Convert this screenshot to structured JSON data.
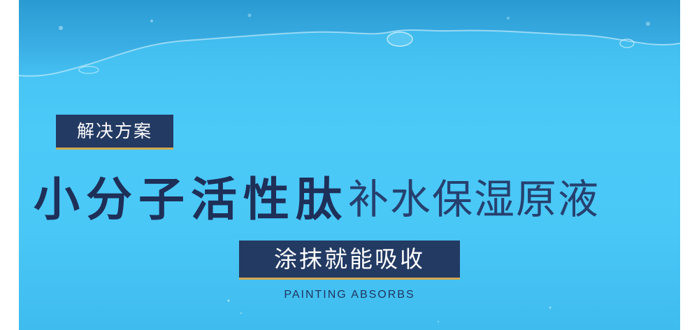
{
  "banner": {
    "tag": "解决方案",
    "headline_bold": "小分子活性肽",
    "headline_light": "补水保湿原液",
    "cta": "涂抹就能吸收",
    "subtitle": "PAINTING ABSORBS"
  },
  "colors": {
    "background": "#4bcaf8",
    "water": "#2a9fd6",
    "navy": "#233a63",
    "gold_accent": "#d3a851",
    "text_dark": "#1e2f58"
  }
}
